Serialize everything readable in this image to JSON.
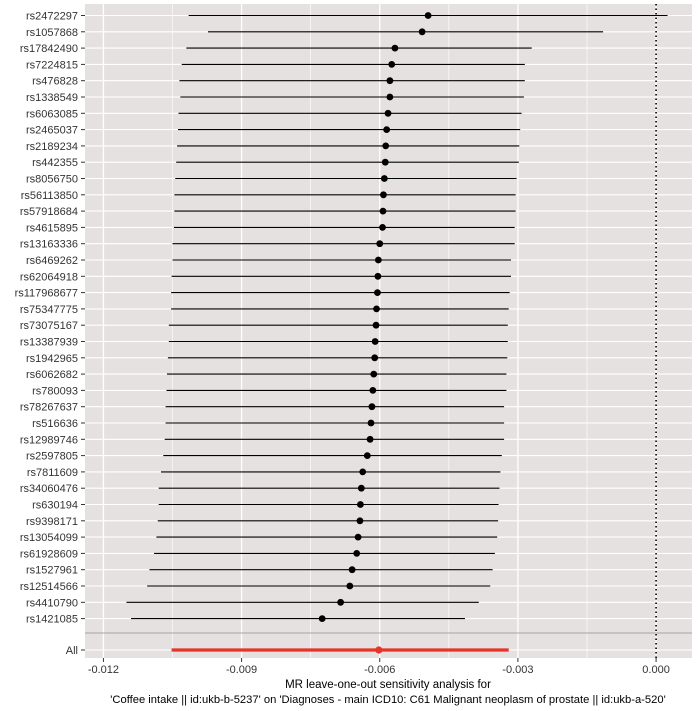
{
  "chart_data": {
    "type": "scatter",
    "subtype": "forest-plot",
    "xlabel_line1": "MR leave-one-out sensitivity analysis for",
    "xlabel_line2": "'Coffee intake || id:ukb-b-5237' on 'Diagnoses - main ICD10: C61 Malignant neoplasm of prostate || id:ukb-a-520'",
    "xlim": [
      -0.0124,
      0.00078
    ],
    "x_ticks": [
      -0.012,
      -0.009,
      -0.006,
      -0.003,
      0.0
    ],
    "x_tick_labels": [
      "-0.012",
      "-0.009",
      "-0.006",
      "-0.003",
      "0.000"
    ],
    "reference_line_x": 0.0,
    "grid": true,
    "colors": {
      "panel_bg": "#E5E1E1",
      "grid": "#FFFFFF",
      "point": "#000000",
      "overall": "#E8332B",
      "separator": "#A6A3A3"
    },
    "snps": [
      {
        "name": "rs2472297",
        "beta": -0.00495,
        "lo": -0.01015,
        "hi": 0.00025
      },
      {
        "name": "rs1057868",
        "beta": -0.00508,
        "lo": -0.00973,
        "hi": -0.00115
      },
      {
        "name": "rs17842490",
        "beta": -0.00567,
        "lo": -0.0102,
        "hi": -0.0027
      },
      {
        "name": "rs7224815",
        "beta": -0.00574,
        "lo": -0.0103,
        "hi": -0.00285
      },
      {
        "name": "rs476828",
        "beta": -0.00578,
        "lo": -0.01035,
        "hi": -0.00285
      },
      {
        "name": "rs1338549",
        "beta": -0.00578,
        "lo": -0.01033,
        "hi": -0.00287
      },
      {
        "name": "rs6063085",
        "beta": -0.00582,
        "lo": -0.01037,
        "hi": -0.00292
      },
      {
        "name": "rs2465037",
        "beta": -0.00585,
        "lo": -0.01038,
        "hi": -0.00295
      },
      {
        "name": "rs2189234",
        "beta": -0.00587,
        "lo": -0.0104,
        "hi": -0.00297
      },
      {
        "name": "rs442355",
        "beta": -0.00588,
        "lo": -0.01042,
        "hi": -0.00298
      },
      {
        "name": "rs8056750",
        "beta": -0.0059,
        "lo": -0.01044,
        "hi": -0.00303
      },
      {
        "name": "rs56113850",
        "beta": -0.00592,
        "lo": -0.01046,
        "hi": -0.00305
      },
      {
        "name": "rs57918684",
        "beta": -0.00593,
        "lo": -0.01046,
        "hi": -0.00305
      },
      {
        "name": "rs4615895",
        "beta": -0.00594,
        "lo": -0.01047,
        "hi": -0.00307
      },
      {
        "name": "rs13163336",
        "beta": -0.006,
        "lo": -0.0105,
        "hi": -0.00307
      },
      {
        "name": "rs6469262",
        "beta": -0.00603,
        "lo": -0.0105,
        "hi": -0.00315
      },
      {
        "name": "rs62064918",
        "beta": -0.00604,
        "lo": -0.01052,
        "hi": -0.00315
      },
      {
        "name": "rs117968677",
        "beta": -0.00605,
        "lo": -0.01053,
        "hi": -0.00318
      },
      {
        "name": "rs75347775",
        "beta": -0.00607,
        "lo": -0.01053,
        "hi": -0.0032
      },
      {
        "name": "rs73075167",
        "beta": -0.00608,
        "lo": -0.01058,
        "hi": -0.00322
      },
      {
        "name": "rs13387939",
        "beta": -0.0061,
        "lo": -0.01058,
        "hi": -0.00322
      },
      {
        "name": "rs1942965",
        "beta": -0.00611,
        "lo": -0.0106,
        "hi": -0.00323
      },
      {
        "name": "rs6062682",
        "beta": -0.00613,
        "lo": -0.01062,
        "hi": -0.00325
      },
      {
        "name": "rs780093",
        "beta": -0.00615,
        "lo": -0.01063,
        "hi": -0.00325
      },
      {
        "name": "rs78267637",
        "beta": -0.00617,
        "lo": -0.01065,
        "hi": -0.0033
      },
      {
        "name": "rs516636",
        "beta": -0.00619,
        "lo": -0.01065,
        "hi": -0.0033
      },
      {
        "name": "rs12989746",
        "beta": -0.00621,
        "lo": -0.01067,
        "hi": -0.0033
      },
      {
        "name": "rs2597805",
        "beta": -0.00627,
        "lo": -0.0107,
        "hi": -0.00335
      },
      {
        "name": "rs7811609",
        "beta": -0.00637,
        "lo": -0.01075,
        "hi": -0.00338
      },
      {
        "name": "rs34060476",
        "beta": -0.0064,
        "lo": -0.0108,
        "hi": -0.0034
      },
      {
        "name": "rs630194",
        "beta": -0.00642,
        "lo": -0.0108,
        "hi": -0.00342
      },
      {
        "name": "rs9398171",
        "beta": -0.00643,
        "lo": -0.01082,
        "hi": -0.00343
      },
      {
        "name": "rs13054099",
        "beta": -0.00647,
        "lo": -0.01085,
        "hi": -0.00345
      },
      {
        "name": "rs61928609",
        "beta": -0.0065,
        "lo": -0.0109,
        "hi": -0.0035
      },
      {
        "name": "rs1527961",
        "beta": -0.0066,
        "lo": -0.011,
        "hi": -0.00355
      },
      {
        "name": "rs12514566",
        "beta": -0.00665,
        "lo": -0.01105,
        "hi": -0.0036
      },
      {
        "name": "rs4410790",
        "beta": -0.00685,
        "lo": -0.0115,
        "hi": -0.00385
      },
      {
        "name": "rs1421085",
        "beta": -0.00725,
        "lo": -0.0114,
        "hi": -0.00415
      }
    ],
    "overall": {
      "name": "All",
      "beta": -0.00602,
      "lo": -0.01052,
      "hi": -0.0032
    }
  }
}
